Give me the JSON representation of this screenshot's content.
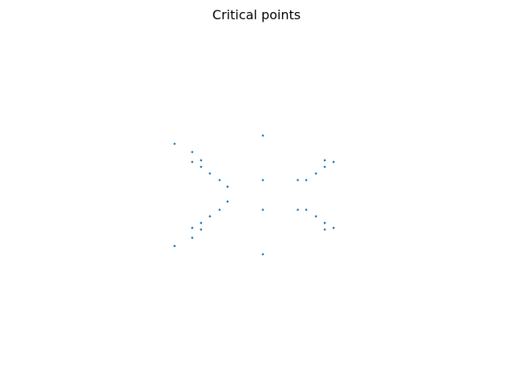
{
  "chart_data": {
    "type": "scatter",
    "title": "Critical points",
    "axes_visible": false,
    "grid": false,
    "marker_color": "#1f77b4",
    "xlim": [
      -4.5,
      4.5
    ],
    "ylim": [
      -1.8,
      1.8
    ],
    "series": [
      {
        "points": [
          {
            "x": -2.0,
            "y": 0.62
          },
          {
            "x": -1.6,
            "y": 0.52
          },
          {
            "x": -1.6,
            "y": 0.4
          },
          {
            "x": -1.4,
            "y": 0.42
          },
          {
            "x": -1.4,
            "y": 0.34
          },
          {
            "x": -1.2,
            "y": 0.26
          },
          {
            "x": -0.98,
            "y": 0.18
          },
          {
            "x": -0.8,
            "y": 0.1
          },
          {
            "x": 0.0,
            "y": 0.72
          },
          {
            "x": 0.0,
            "y": 0.18
          },
          {
            "x": 0.79,
            "y": 0.18
          },
          {
            "x": 0.98,
            "y": 0.18
          },
          {
            "x": 1.2,
            "y": 0.26
          },
          {
            "x": 1.4,
            "y": 0.34
          },
          {
            "x": 1.4,
            "y": 0.42
          },
          {
            "x": 1.6,
            "y": 0.4
          },
          {
            "x": -2.0,
            "y": -0.62
          },
          {
            "x": -1.6,
            "y": -0.52
          },
          {
            "x": -1.6,
            "y": -0.4
          },
          {
            "x": -1.4,
            "y": -0.42
          },
          {
            "x": -1.4,
            "y": -0.34
          },
          {
            "x": -1.2,
            "y": -0.26
          },
          {
            "x": -0.98,
            "y": -0.18
          },
          {
            "x": -0.8,
            "y": -0.08
          },
          {
            "x": 0.0,
            "y": -0.72
          },
          {
            "x": 0.0,
            "y": -0.18
          },
          {
            "x": 0.79,
            "y": -0.18
          },
          {
            "x": 0.98,
            "y": -0.18
          },
          {
            "x": 1.2,
            "y": -0.26
          },
          {
            "x": 1.4,
            "y": -0.34
          },
          {
            "x": 1.4,
            "y": -0.42
          },
          {
            "x": 1.6,
            "y": -0.4
          }
        ]
      }
    ]
  }
}
